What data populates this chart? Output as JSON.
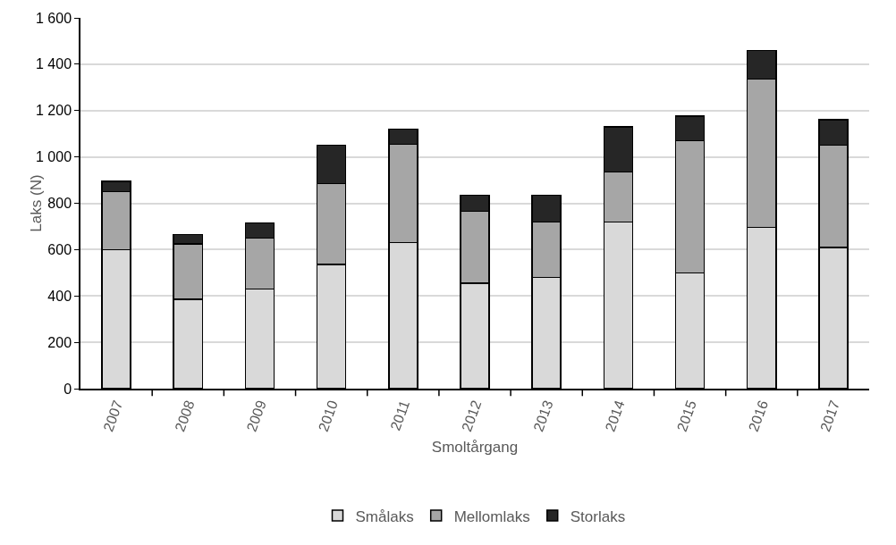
{
  "chart_data": {
    "type": "bar",
    "stacked": true,
    "xlabel": "Smoltårgang",
    "ylabel": "Laks (N)",
    "categories": [
      "2007",
      "2008",
      "2009",
      "2010",
      "2011",
      "2012",
      "2013",
      "2014",
      "2015",
      "2016",
      "2017"
    ],
    "series": [
      {
        "name": "Smålaks",
        "color": "#d9d9d9",
        "values": [
          600,
          385,
          430,
          535,
          630,
          455,
          480,
          720,
          500,
          695,
          610
        ]
      },
      {
        "name": "Mellomlaks",
        "color": "#a6a6a6",
        "values": [
          250,
          240,
          220,
          350,
          425,
          310,
          240,
          215,
          570,
          640,
          440
        ]
      },
      {
        "name": "Storlaks",
        "color": "#262626",
        "values": [
          45,
          40,
          65,
          165,
          65,
          70,
          115,
          195,
          105,
          125,
          110
        ]
      }
    ],
    "ylim": [
      0,
      1600
    ],
    "yticks": [
      0,
      200,
      400,
      600,
      800,
      {
        "value": 1000,
        "label": "1 000"
      },
      {
        "value": 1200,
        "label": "1 200"
      },
      {
        "value": 1400,
        "label": "1 400"
      },
      {
        "value": 1600,
        "label": "1 600"
      }
    ],
    "grid": "y",
    "legend": "bottom"
  }
}
